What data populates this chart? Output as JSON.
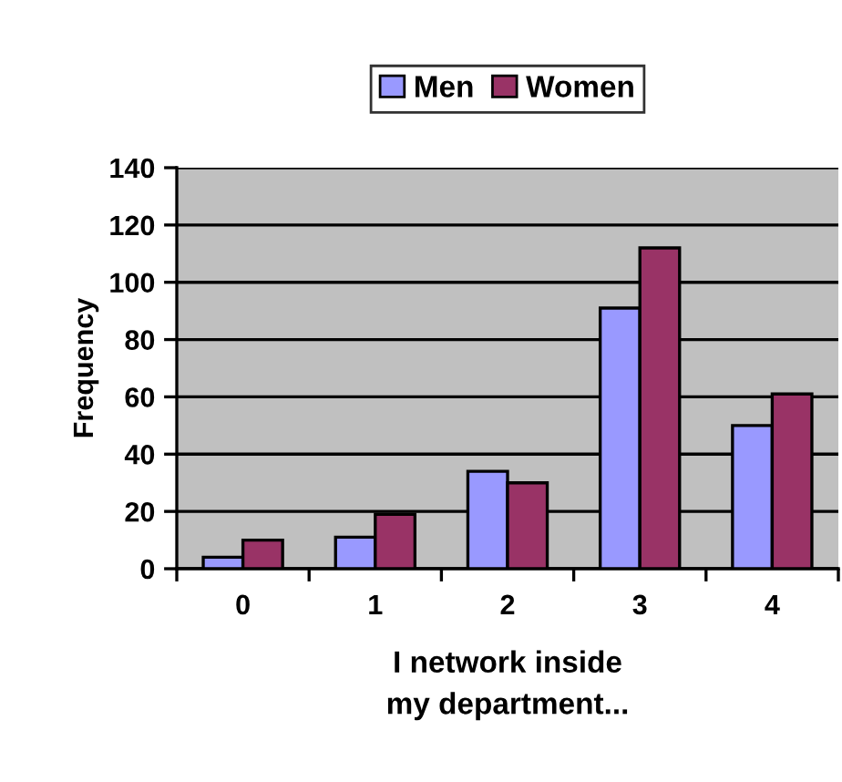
{
  "chart_data": {
    "type": "bar",
    "xlabel": "I network inside\nmy department...",
    "ylabel": "Frequency",
    "categories": [
      "0",
      "1",
      "2",
      "3",
      "4"
    ],
    "series": [
      {
        "name": "Men",
        "color": "#9999ff",
        "values": [
          4,
          11,
          34,
          91,
          50
        ]
      },
      {
        "name": "Women",
        "color": "#993366",
        "values": [
          10,
          19,
          30,
          112,
          61
        ]
      }
    ],
    "ylim": [
      0,
      140
    ],
    "yticks": [
      0,
      20,
      40,
      60,
      80,
      100,
      120,
      140
    ],
    "grid": "y",
    "legend": "top"
  }
}
